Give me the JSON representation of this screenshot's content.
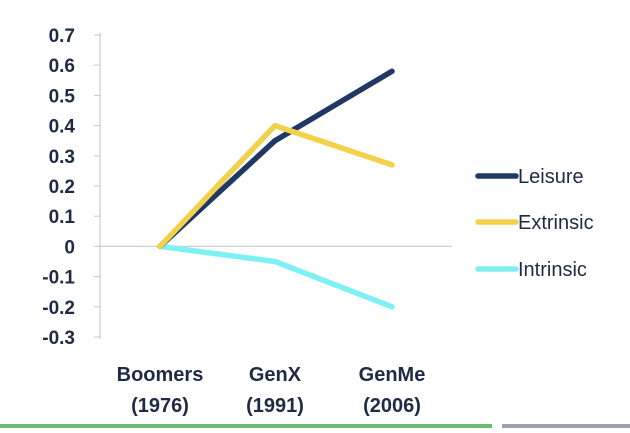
{
  "chart_data": {
    "type": "line",
    "categories": [
      "Boomers\n(1976)",
      "GenX\n(1991)",
      "GenMe\n(2006)"
    ],
    "series": [
      {
        "name": "Leisure",
        "values": [
          0,
          0.35,
          0.58
        ],
        "color": "#1f3864"
      },
      {
        "name": "Extrinsic",
        "values": [
          0,
          0.4,
          0.27
        ],
        "color": "#f2d14b"
      },
      {
        "name": "Intrinsic",
        "values": [
          0,
          -0.05,
          -0.2
        ],
        "color": "#7ff0f4"
      }
    ],
    "yticks": [
      "0.7",
      "0.6",
      "0.5",
      "0.4",
      "0.3",
      "0.2",
      "0.1",
      "0",
      "-0.1",
      "-0.2",
      "-0.3"
    ],
    "ylim": [
      -0.3,
      0.7
    ],
    "grid": false,
    "legend": "right",
    "title": "",
    "xlabel": "",
    "ylabel": ""
  },
  "colors": {
    "axis": "#cfcfcf",
    "text": "#1f2a44",
    "bottom_bar_left": "#6dbb73",
    "bottom_bar_right": "#9aa3ad"
  }
}
